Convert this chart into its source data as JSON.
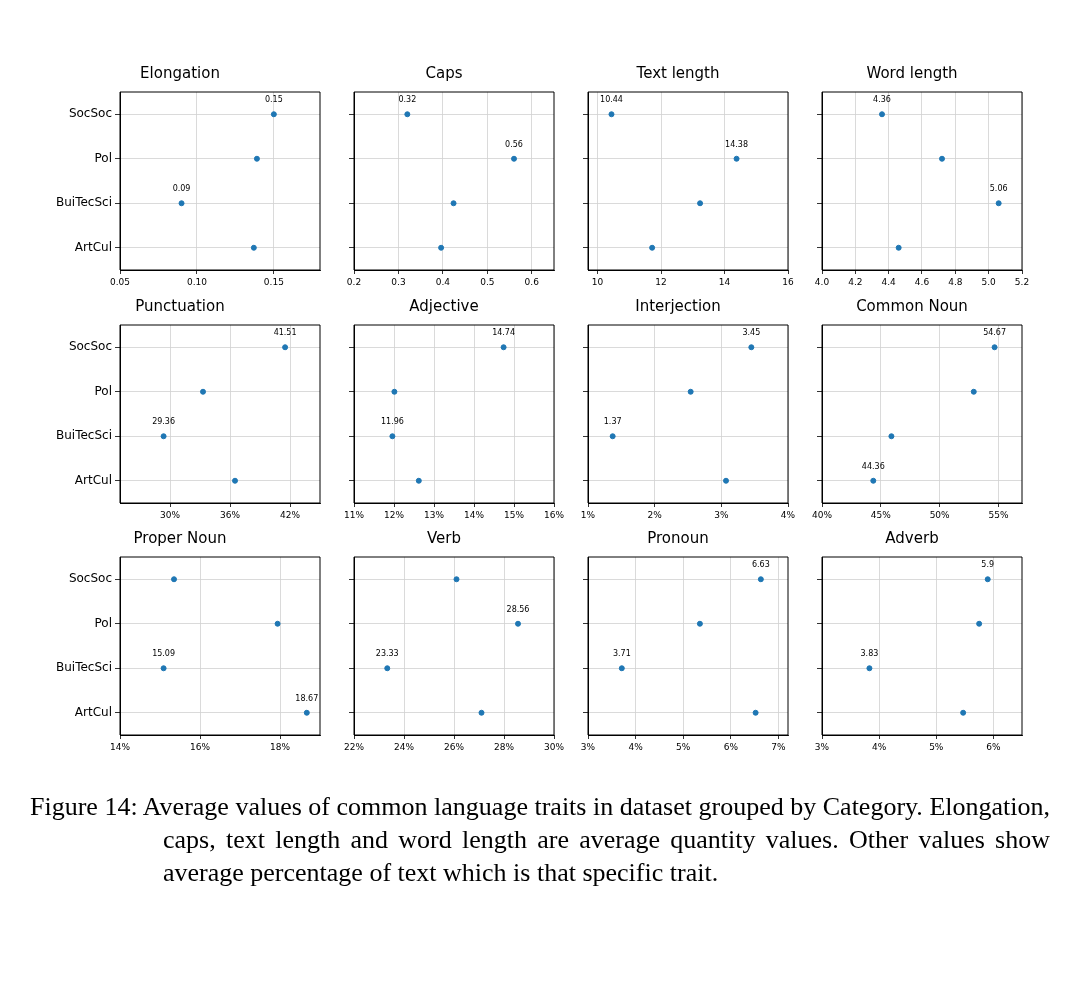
{
  "chart_data": [
    {
      "type": "scatter",
      "orientation": "horizontal",
      "title": "Elongation",
      "categories": [
        "SocSoc",
        "Pol",
        "BuiTecSci",
        "ArtCul"
      ],
      "values": [
        0.15,
        0.139,
        0.09,
        0.137
      ],
      "value_labels": [
        "0.15",
        null,
        "0.09",
        null
      ],
      "color": "#1f77b4",
      "marker": "circle",
      "grid": true,
      "xlim": [
        0.05,
        0.18
      ],
      "xticks": [
        0.05,
        {
          "value": 0.1,
          "label": "0.10"
        },
        0.15
      ]
    },
    {
      "type": "scatter",
      "orientation": "horizontal",
      "title": "Caps",
      "categories": [
        null,
        null,
        null,
        null
      ],
      "values": [
        0.32,
        0.56,
        0.424,
        0.396
      ],
      "value_labels": [
        "0.32",
        "0.56",
        null,
        null
      ],
      "color": "#1f77b4",
      "marker": "circle",
      "grid": true,
      "tick_labels": "x",
      "xlim": [
        0.2,
        0.65
      ],
      "xticks": [
        0.2,
        0.3,
        0.4,
        0.5,
        0.6
      ]
    },
    {
      "type": "scatter",
      "orientation": "horizontal",
      "title": "Text length",
      "categories": [
        null,
        null,
        null,
        null
      ],
      "values": [
        10.44,
        14.38,
        13.23,
        11.72
      ],
      "value_labels": [
        "10.44",
        "14.38",
        null,
        null
      ],
      "color": "#1f77b4",
      "marker": "circle",
      "grid": true,
      "tick_labels": "x",
      "xlim": [
        9.7,
        16
      ],
      "xticks": [
        10,
        12,
        14,
        16
      ]
    },
    {
      "type": "scatter",
      "orientation": "horizontal",
      "title": "Word length",
      "categories": [
        null,
        null,
        null,
        null
      ],
      "values": [
        4.36,
        4.72,
        5.06,
        4.46
      ],
      "value_labels": [
        "4.36",
        null,
        "5.06",
        null
      ],
      "color": "#1f77b4",
      "marker": "circle",
      "grid": true,
      "tick_labels": "x",
      "xlim": [
        4,
        5.2
      ],
      "xticks": [
        {
          "value": 4,
          "label": "4.0"
        },
        4.2,
        4.4,
        4.6,
        4.8,
        {
          "value": 5,
          "label": "5.0"
        },
        5.2
      ]
    },
    {
      "type": "scatter",
      "orientation": "horizontal",
      "title": "Punctuation",
      "categories": [
        "SocSoc",
        "Pol",
        "BuiTecSci",
        "ArtCul"
      ],
      "values": [
        41.51,
        33.3,
        29.36,
        36.5
      ],
      "value_labels": [
        "41.51",
        null,
        "29.36",
        null
      ],
      "color": "#1f77b4",
      "marker": "circle",
      "grid": true,
      "xlim": [
        25,
        45
      ],
      "xticks": [
        {
          "value": 30,
          "label": "30%"
        },
        {
          "value": 36,
          "label": "36%"
        },
        {
          "value": 42,
          "label": "42%"
        }
      ]
    },
    {
      "type": "scatter",
      "orientation": "horizontal",
      "title": "Adjective",
      "categories": [
        null,
        null,
        null,
        null
      ],
      "values": [
        14.74,
        12.01,
        11.96,
        12.62
      ],
      "value_labels": [
        "14.74",
        null,
        "11.96",
        null
      ],
      "color": "#1f77b4",
      "marker": "circle",
      "grid": true,
      "tick_labels": "x",
      "xlim": [
        11,
        16
      ],
      "xticks": [
        {
          "value": 11,
          "label": "11%"
        },
        {
          "value": 12,
          "label": "12%"
        },
        {
          "value": 13,
          "label": "13%"
        },
        {
          "value": 14,
          "label": "14%"
        },
        {
          "value": 15,
          "label": "15%"
        },
        {
          "value": 16,
          "label": "16%"
        }
      ]
    },
    {
      "type": "scatter",
      "orientation": "horizontal",
      "title": "Interjection",
      "categories": [
        null,
        null,
        null,
        null
      ],
      "values": [
        3.45,
        2.54,
        1.37,
        3.07
      ],
      "value_labels": [
        "3.45",
        null,
        "1.37",
        null
      ],
      "color": "#1f77b4",
      "marker": "circle",
      "grid": true,
      "tick_labels": "x",
      "xlim": [
        1,
        4
      ],
      "xticks": [
        {
          "value": 1,
          "label": "1%"
        },
        {
          "value": 2,
          "label": "2%"
        },
        {
          "value": 3,
          "label": "3%"
        },
        {
          "value": 4,
          "label": "4%"
        }
      ]
    },
    {
      "type": "scatter",
      "orientation": "horizontal",
      "title": "Common Noun",
      "categories": [
        null,
        null,
        null,
        null
      ],
      "values": [
        54.67,
        52.9,
        45.9,
        44.36
      ],
      "value_labels": [
        "54.67",
        null,
        null,
        "44.36"
      ],
      "color": "#1f77b4",
      "marker": "circle",
      "grid": true,
      "tick_labels": "x",
      "xlim": [
        40,
        57
      ],
      "xticks": [
        {
          "value": 40,
          "label": "40%"
        },
        {
          "value": 45,
          "label": "45%"
        },
        {
          "value": 50,
          "label": "50%"
        },
        {
          "value": 55,
          "label": "55%"
        }
      ]
    },
    {
      "type": "scatter",
      "orientation": "horizontal",
      "title": "Proper Noun",
      "categories": [
        "SocSoc",
        "Pol",
        "BuiTecSci",
        "ArtCul"
      ],
      "values": [
        15.35,
        17.94,
        15.09,
        18.67
      ],
      "value_labels": [
        null,
        null,
        "15.09",
        "18.67"
      ],
      "color": "#1f77b4",
      "marker": "circle",
      "grid": true,
      "xlim": [
        14,
        19
      ],
      "xticks": [
        {
          "value": 14,
          "label": "14%"
        },
        {
          "value": 16,
          "label": "16%"
        },
        {
          "value": 18,
          "label": "18%"
        }
      ]
    },
    {
      "type": "scatter",
      "orientation": "horizontal",
      "title": "Verb",
      "categories": [
        null,
        null,
        null,
        null
      ],
      "values": [
        26.1,
        28.56,
        23.33,
        27.1
      ],
      "value_labels": [
        null,
        "28.56",
        "23.33",
        null
      ],
      "color": "#1f77b4",
      "marker": "circle",
      "grid": true,
      "tick_labels": "x",
      "xlim": [
        22,
        30
      ],
      "xticks": [
        {
          "value": 22,
          "label": "22%"
        },
        {
          "value": 24,
          "label": "24%"
        },
        {
          "value": 26,
          "label": "26%"
        },
        {
          "value": 28,
          "label": "28%"
        },
        {
          "value": 30,
          "label": "30%"
        }
      ]
    },
    {
      "type": "scatter",
      "orientation": "horizontal",
      "title": "Pronoun",
      "categories": [
        null,
        null,
        null,
        null
      ],
      "values": [
        6.63,
        5.35,
        3.71,
        6.52
      ],
      "value_labels": [
        "6.63",
        null,
        "3.71",
        null
      ],
      "color": "#1f77b4",
      "marker": "circle",
      "grid": true,
      "tick_labels": "x",
      "xlim": [
        3,
        7.2
      ],
      "xticks": [
        {
          "value": 3,
          "label": "3%"
        },
        {
          "value": 4,
          "label": "4%"
        },
        {
          "value": 5,
          "label": "5%"
        },
        {
          "value": 6,
          "label": "6%"
        },
        {
          "value": 7,
          "label": "7%"
        }
      ]
    },
    {
      "type": "scatter",
      "orientation": "horizontal",
      "title": "Adverb",
      "categories": [
        null,
        null,
        null,
        null
      ],
      "values": [
        5.9,
        5.75,
        3.83,
        5.47
      ],
      "value_labels": [
        "5.9",
        null,
        "3.83",
        null
      ],
      "color": "#1f77b4",
      "marker": "circle",
      "grid": true,
      "tick_labels": "x",
      "xlim": [
        3,
        6.5
      ],
      "xticks": [
        {
          "value": 3,
          "label": "3%"
        },
        {
          "value": 4,
          "label": "4%"
        },
        {
          "value": 5,
          "label": "5%"
        },
        {
          "value": 6,
          "label": "6%"
        }
      ],
      "annotations": [
        "Figure 14: Average values of common language traits in dataset grouped by Category. Elongation, caps, text length and word length are average quantity values. Other values show average percentage of text which is that specific trait."
      ]
    }
  ]
}
